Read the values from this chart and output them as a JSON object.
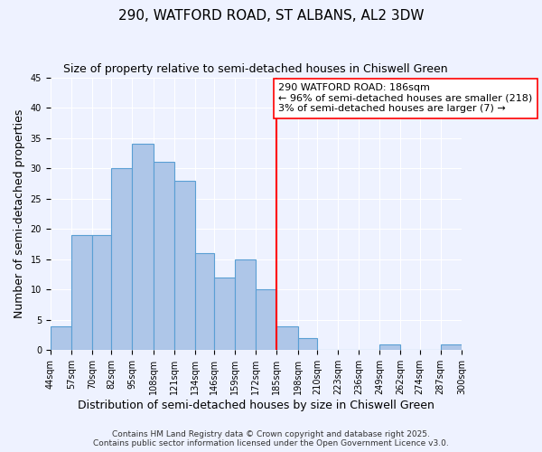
{
  "title": "290, WATFORD ROAD, ST ALBANS, AL2 3DW",
  "subtitle": "Size of property relative to semi-detached houses in Chiswell Green",
  "xlabel": "Distribution of semi-detached houses by size in Chiswell Green",
  "ylabel": "Number of semi-detached properties",
  "bin_edges": [
    44,
    57,
    70,
    82,
    95,
    108,
    121,
    134,
    146,
    159,
    172,
    185,
    198,
    210,
    223,
    236,
    249,
    262,
    274,
    287,
    300
  ],
  "bin_labels": [
    "44sqm",
    "57sqm",
    "70sqm",
    "82sqm",
    "95sqm",
    "108sqm",
    "121sqm",
    "134sqm",
    "146sqm",
    "159sqm",
    "172sqm",
    "185sqm",
    "198sqm",
    "210sqm",
    "223sqm",
    "236sqm",
    "249sqm",
    "262sqm",
    "274sqm",
    "287sqm",
    "300sqm"
  ],
  "counts": [
    4,
    19,
    19,
    30,
    34,
    31,
    28,
    16,
    12,
    15,
    10,
    4,
    2,
    0,
    0,
    0,
    1,
    0,
    0,
    1
  ],
  "bar_color": "#aec6e8",
  "bar_edge_color": "#5a9fd4",
  "reference_line_x": 185,
  "reference_line_color": "red",
  "annotation_line1": "290 WATFORD ROAD: 186sqm",
  "annotation_line2": "← 96% of semi-detached houses are smaller (218)",
  "annotation_line3": "3% of semi-detached houses are larger (7) →",
  "annotation_box_color": "white",
  "annotation_box_edge_color": "red",
  "ylim": [
    0,
    45
  ],
  "yticks": [
    0,
    5,
    10,
    15,
    20,
    25,
    30,
    35,
    40,
    45
  ],
  "bg_color": "#eef2ff",
  "footer_text": "Contains HM Land Registry data © Crown copyright and database right 2025.\nContains public sector information licensed under the Open Government Licence v3.0.",
  "title_fontsize": 11,
  "subtitle_fontsize": 9,
  "xlabel_fontsize": 9,
  "ylabel_fontsize": 9,
  "tick_fontsize": 7,
  "annotation_fontsize": 8,
  "footer_fontsize": 6.5
}
